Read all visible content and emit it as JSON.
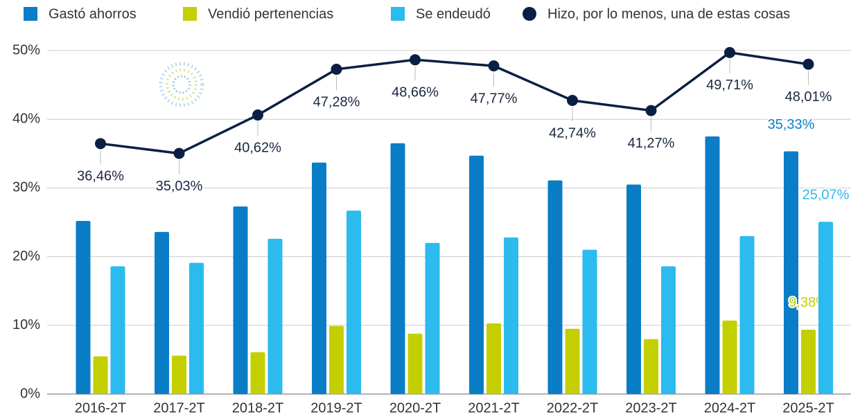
{
  "chart_data": {
    "type": "bar_line",
    "categories": [
      "2016-2T",
      "2017-2T",
      "2018-2T",
      "2019-2T",
      "2020-2T",
      "2021-2T",
      "2022-2T",
      "2023-2T",
      "2024-2T",
      "2025-2T"
    ],
    "series": [
      {
        "name": "Gastó ahorros",
        "color": "#0a7dc7",
        "type": "bar",
        "values": [
          25.2,
          23.6,
          27.3,
          33.7,
          36.5,
          34.7,
          31.1,
          30.5,
          37.5,
          35.33
        ],
        "value_labels": [
          null,
          null,
          null,
          null,
          null,
          null,
          null,
          null,
          null,
          "35,33%"
        ]
      },
      {
        "name": "Vendió pertenencias",
        "color": "#c3cf00",
        "type": "bar",
        "values": [
          5.5,
          5.6,
          6.1,
          9.9,
          8.8,
          10.3,
          9.5,
          8.0,
          10.7,
          9.38
        ],
        "value_labels": [
          null,
          null,
          null,
          null,
          null,
          null,
          null,
          null,
          null,
          "9,38%"
        ]
      },
      {
        "name": "Se endeudó",
        "color": "#2bbbee",
        "type": "bar",
        "values": [
          18.6,
          19.1,
          22.6,
          26.7,
          22.0,
          22.8,
          21.0,
          18.6,
          23.0,
          25.07
        ],
        "value_labels": [
          null,
          null,
          null,
          null,
          null,
          null,
          null,
          null,
          null,
          "25,07%"
        ]
      },
      {
        "name": "Hizo, por lo menos, una de estas cosas",
        "color": "#0b1f44",
        "type": "line",
        "values": [
          36.46,
          35.03,
          40.62,
          47.28,
          48.66,
          47.77,
          42.74,
          41.27,
          49.71,
          48.01
        ],
        "value_labels": [
          "36,46%",
          "35,03%",
          "40,62%",
          "47,28%",
          "48,66%",
          "47,77%",
          "42,74%",
          "41,27%",
          "49,71%",
          "48,01%"
        ]
      }
    ],
    "ylim": [
      0,
      50
    ],
    "yticks": [
      {
        "value": 0,
        "label": "0%"
      },
      {
        "value": 10,
        "label": "10%"
      },
      {
        "value": 20,
        "label": "20%"
      },
      {
        "value": 30,
        "label": "30%"
      },
      {
        "value": 40,
        "label": "40%"
      },
      {
        "value": 50,
        "label": "50%"
      }
    ],
    "grid": true,
    "legend": "top"
  }
}
